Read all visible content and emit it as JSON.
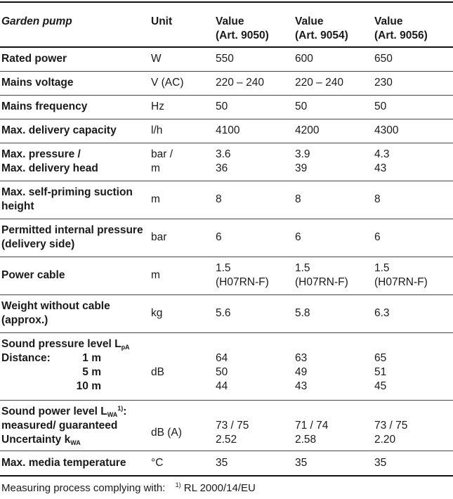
{
  "header": {
    "title": "Garden pump",
    "unit": "Unit",
    "columns": [
      {
        "label": "Value",
        "article": "(Art. 9050)"
      },
      {
        "label": "Value",
        "article": "(Art. 9054)"
      },
      {
        "label": "Value",
        "article": "(Art. 9056)"
      }
    ]
  },
  "rows": {
    "rated_power": {
      "label": "Rated power",
      "unit": "W",
      "values": [
        "550",
        "600",
        "650"
      ]
    },
    "mains_voltage": {
      "label": "Mains voltage",
      "unit": "V (AC)",
      "values": [
        "220 – 240",
        "220 – 240",
        "230"
      ]
    },
    "mains_frequency": {
      "label": "Mains frequency",
      "unit": "Hz",
      "values": [
        "50",
        "50",
        "50"
      ]
    },
    "delivery_capacity": {
      "label": "Max. delivery capacity",
      "unit": "l/h",
      "values": [
        "4100",
        "4200",
        "4300"
      ]
    },
    "pressure": {
      "label_1": "Max. pressure /",
      "label_2": "Max. delivery head",
      "unit_1": "bar /",
      "unit_2": "m",
      "values_1": [
        "3.6",
        "3.9",
        "4.3"
      ],
      "values_2": [
        "36",
        "39",
        "43"
      ]
    },
    "suction_height": {
      "label_1": "Max. self-priming suction",
      "label_2": "height",
      "unit": "m",
      "values": [
        "8",
        "8",
        "8"
      ]
    },
    "internal_pressure": {
      "label_1": "Permitted internal pressure",
      "label_2": "(delivery side)",
      "unit": "bar",
      "values": [
        "6",
        "6",
        "6"
      ]
    },
    "power_cable": {
      "label": "Power cable",
      "unit": "m",
      "values_1": [
        "1.5",
        "1.5",
        "1.5"
      ],
      "values_2": [
        "(H07RN-F)",
        "(H07RN-F)",
        "(H07RN-F)"
      ]
    },
    "weight": {
      "label_1": "Weight without cable",
      "label_2": "(approx.)",
      "unit": "kg",
      "values": [
        "5.6",
        "5.8",
        "6.3"
      ]
    },
    "sound_pressure": {
      "label": "Sound pressure level L",
      "label_sub": "pA",
      "distance_label": "Distance:",
      "distances": [
        "1 m",
        "5 m",
        "10 m"
      ],
      "unit": "dB",
      "values": [
        [
          "64",
          "50",
          "44"
        ],
        [
          "63",
          "49",
          "43"
        ],
        [
          "65",
          "51",
          "45"
        ]
      ]
    },
    "sound_power": {
      "label": "Sound power level L",
      "label_sub": "WA",
      "label_sup": "1)",
      "label_end": ":",
      "label_2": "measured/ guaranteed",
      "label_3": "Uncertainty k",
      "label_3_sub": "WA",
      "unit": "dB (A)",
      "values_1": [
        "73 / 75",
        "71 / 74",
        "73 / 75"
      ],
      "values_2": [
        "2.52",
        "2.58",
        "2.20"
      ]
    },
    "media_temperature": {
      "label": "Max. media temperature",
      "unit": "°C",
      "values": [
        "35",
        "35",
        "35"
      ]
    }
  },
  "footer": {
    "text": "Measuring process complying with:",
    "footnote_mark": "1)",
    "standard": "RL 2000/14/EU"
  }
}
